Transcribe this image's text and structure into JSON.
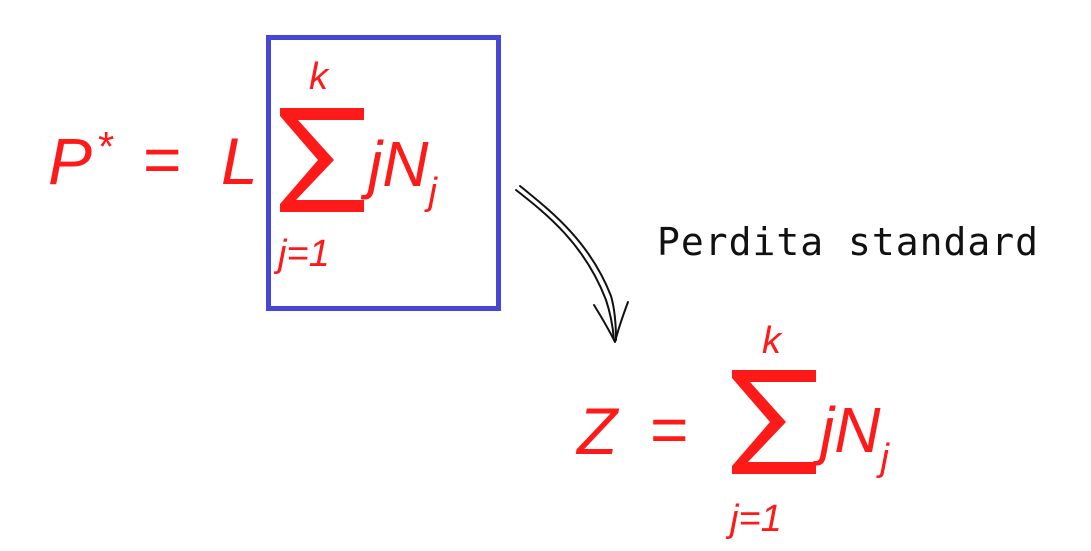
{
  "equation_top": {
    "lhs": "P",
    "lhs_superscript": "*",
    "equals": "=",
    "factor": "L",
    "sum_upper": "k",
    "sum_lower": "j=1",
    "term": "jN",
    "term_subscript": "j"
  },
  "equation_bottom": {
    "lhs": "Z",
    "equals": "=",
    "sum_upper": "k",
    "sum_lower": "j=1",
    "term": "jN",
    "term_subscript": "j"
  },
  "annotation": {
    "label": "Perdita standard"
  },
  "colors": {
    "formula": "#ff1a1a",
    "highlight_box": "#4747d6",
    "annotation_text": "#111111"
  }
}
